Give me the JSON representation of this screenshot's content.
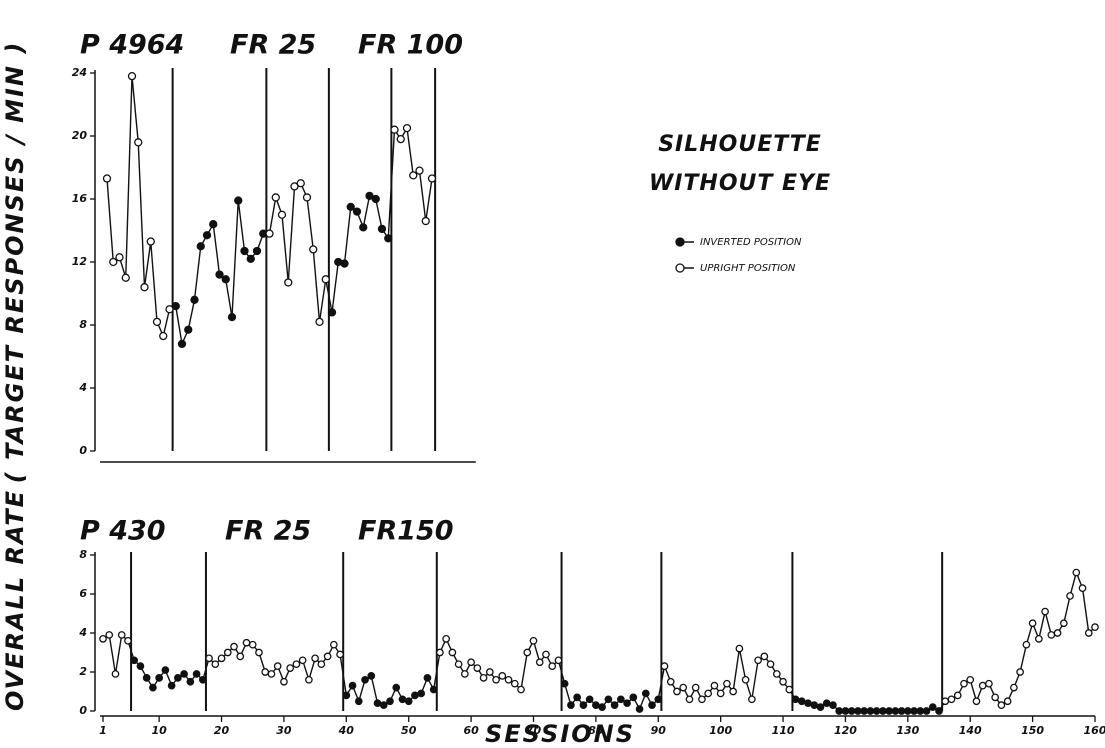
{
  "chart_data": [
    {
      "type": "line",
      "y_label": "( TARGET RESPONSES / MIN )",
      "annotation": [
        "SILHOUETTE",
        "WITHOUT EYE"
      ],
      "phase_labels": [
        "P 4964",
        "FR 25",
        "FR 100"
      ],
      "phase_lines": [
        11.5,
        26.5,
        36.5,
        46.5,
        53.5
      ],
      "x": [
        1,
        2,
        3,
        4,
        5,
        6,
        7,
        8,
        9,
        10,
        11,
        12,
        13,
        14,
        15,
        16,
        17,
        18,
        19,
        20,
        21,
        22,
        23,
        24,
        25,
        26,
        27,
        28,
        29,
        30,
        31,
        32,
        33,
        34,
        35,
        36,
        37,
        38,
        39,
        40,
        41,
        42,
        43,
        44,
        45,
        46,
        47,
        48,
        49,
        50,
        51,
        52,
        53
      ],
      "xlim": [
        0,
        60
      ],
      "ylim": [
        0,
        24
      ],
      "yticks": [
        0,
        4,
        8,
        12,
        16,
        20,
        24
      ],
      "legend": "right",
      "series": [
        {
          "name": "INVERTED POSITION",
          "marker": "filled",
          "color": "#111111",
          "values": [
            null,
            null,
            null,
            null,
            null,
            null,
            null,
            null,
            null,
            null,
            null,
            9.2,
            6.8,
            7.7,
            9.6,
            13,
            13.7,
            14.4,
            11.2,
            10.9,
            8.5,
            15.9,
            12.7,
            12.2,
            12.7,
            13.8,
            null,
            null,
            null,
            null,
            null,
            null,
            null,
            null,
            null,
            null,
            8.8,
            12,
            11.9,
            15.5,
            15.2,
            14.2,
            16.2,
            16,
            14.1,
            13.5,
            null,
            null,
            null,
            null,
            null,
            null,
            null
          ]
        },
        {
          "name": "UPRIGHT POSITION",
          "marker": "open",
          "color": "#111111",
          "values": [
            17.3,
            12,
            12.3,
            11,
            23.8,
            19.6,
            10.4,
            13.3,
            8.2,
            7.3,
            9,
            null,
            null,
            null,
            null,
            null,
            null,
            null,
            null,
            null,
            null,
            null,
            null,
            null,
            null,
            null,
            13.8,
            16.1,
            15,
            10.7,
            16.8,
            17,
            16.1,
            12.8,
            8.2,
            10.9,
            null,
            null,
            null,
            null,
            null,
            null,
            null,
            null,
            null,
            null,
            20.4,
            19.8,
            20.5,
            17.5,
            17.8,
            14.6,
            17.3
          ]
        }
      ]
    },
    {
      "type": "line",
      "y_label": "OVERALL RATE",
      "x_label": "SESSIONS",
      "phase_labels": [
        "P 430",
        "FR 25",
        "FR150"
      ],
      "phase_lines": [
        5.5,
        17.5,
        39.5,
        54.5,
        74.5,
        90.5,
        111.5,
        135.5
      ],
      "x": [
        1,
        2,
        3,
        4,
        5,
        6,
        7,
        8,
        9,
        10,
        11,
        12,
        13,
        14,
        15,
        16,
        17,
        18,
        19,
        20,
        21,
        22,
        23,
        24,
        25,
        26,
        27,
        28,
        29,
        30,
        31,
        32,
        33,
        34,
        35,
        36,
        37,
        38,
        39,
        40,
        41,
        42,
        43,
        44,
        45,
        46,
        47,
        48,
        49,
        50,
        51,
        52,
        53,
        54,
        55,
        56,
        57,
        58,
        59,
        60,
        61,
        62,
        63,
        64,
        65,
        66,
        67,
        68,
        69,
        70,
        71,
        72,
        73,
        74,
        75,
        76,
        77,
        78,
        79,
        80,
        81,
        82,
        83,
        84,
        85,
        86,
        87,
        88,
        89,
        90,
        91,
        92,
        93,
        94,
        95,
        96,
        97,
        98,
        99,
        100,
        101,
        102,
        103,
        104,
        105,
        106,
        107,
        108,
        109,
        110,
        111,
        112,
        113,
        114,
        115,
        116,
        117,
        118,
        119,
        120,
        121,
        122,
        123,
        124,
        125,
        126,
        127,
        128,
        129,
        130,
        131,
        132,
        133,
        134,
        135,
        136,
        137,
        138,
        139,
        140,
        141,
        142,
        143,
        144,
        145,
        146,
        147,
        148,
        149,
        150,
        151,
        152,
        153,
        154,
        155,
        156,
        157,
        158,
        159,
        160
      ],
      "xlim": [
        0,
        160
      ],
      "ylim": [
        0,
        8
      ],
      "xticks": [
        1,
        10,
        20,
        30,
        40,
        50,
        60,
        70,
        80,
        90,
        100,
        110,
        120,
        130,
        140,
        150,
        160
      ],
      "yticks": [
        0,
        2,
        4,
        6,
        8
      ],
      "series": [
        {
          "marker": "filled",
          "color": "#111111",
          "values": [
            null,
            null,
            null,
            null,
            null,
            2.6,
            2.3,
            1.7,
            1.2,
            1.7,
            2.1,
            1.3,
            1.7,
            1.9,
            1.5,
            1.9,
            1.6,
            null,
            null,
            null,
            null,
            null,
            null,
            null,
            null,
            null,
            null,
            null,
            null,
            null,
            null,
            null,
            null,
            null,
            null,
            null,
            null,
            null,
            null,
            0.8,
            1.3,
            0.5,
            1.6,
            1.8,
            0.4,
            0.3,
            0.5,
            1.2,
            0.6,
            0.5,
            0.8,
            0.9,
            1.7,
            1.1,
            null,
            null,
            null,
            null,
            null,
            null,
            null,
            null,
            null,
            null,
            null,
            null,
            null,
            null,
            null,
            null,
            null,
            null,
            null,
            null,
            1.4,
            0.3,
            0.7,
            0.3,
            0.6,
            0.3,
            0.2,
            0.6,
            0.3,
            0.6,
            0.4,
            0.7,
            0.1,
            0.9,
            0.3,
            0.6,
            null,
            null,
            null,
            null,
            null,
            null,
            null,
            null,
            null,
            null,
            null,
            null,
            null,
            null,
            null,
            null,
            null,
            null,
            null,
            null,
            null,
            0.6,
            0.5,
            0.4,
            0.3,
            0.2,
            0.4,
            0.3,
            0,
            0,
            0,
            0,
            0,
            0,
            0,
            0,
            0,
            0,
            0,
            0,
            0,
            0,
            0,
            0.2,
            0,
            null,
            null,
            null,
            null,
            null,
            null,
            null,
            null,
            null,
            null,
            null,
            null,
            null,
            null,
            null,
            null,
            null,
            null,
            null,
            null,
            null,
            null,
            null,
            null,
            null
          ]
        },
        {
          "marker": "open",
          "color": "#111111",
          "values": [
            3.7,
            3.9,
            1.9,
            3.9,
            3.6,
            null,
            null,
            null,
            null,
            null,
            null,
            null,
            null,
            null,
            null,
            null,
            null,
            2.7,
            2.4,
            2.7,
            3,
            3.3,
            2.8,
            3.5,
            3.4,
            3,
            2,
            1.9,
            2.3,
            1.5,
            2.2,
            2.4,
            2.6,
            1.6,
            2.7,
            2.4,
            2.8,
            3.4,
            2.9,
            null,
            null,
            null,
            null,
            null,
            null,
            null,
            null,
            null,
            null,
            null,
            null,
            null,
            null,
            null,
            3,
            3.7,
            3,
            2.4,
            1.9,
            2.5,
            2.2,
            1.7,
            2,
            1.6,
            1.8,
            1.6,
            1.4,
            1.1,
            3,
            3.6,
            2.5,
            2.9,
            2.3,
            2.6,
            null,
            null,
            null,
            null,
            null,
            null,
            null,
            null,
            null,
            null,
            null,
            null,
            null,
            null,
            null,
            null,
            2.3,
            1.5,
            1,
            1.2,
            0.6,
            1.2,
            0.6,
            0.9,
            1.3,
            0.9,
            1.4,
            1,
            3.2,
            1.6,
            0.6,
            2.6,
            2.8,
            2.4,
            1.9,
            1.5,
            1.1,
            null,
            null,
            null,
            null,
            null,
            null,
            null,
            null,
            null,
            null,
            null,
            null,
            null,
            null,
            null,
            null,
            null,
            null,
            null,
            null,
            null,
            null,
            null,
            null,
            0.5,
            0.6,
            0.8,
            1.4,
            1.6,
            0.5,
            1.3,
            1.4,
            0.7,
            0.3,
            0.5,
            1.2,
            2,
            3.4,
            4.5,
            3.7,
            5.1,
            3.9,
            4,
            4.5,
            5.9,
            7.1,
            6.3,
            4,
            4.3
          ]
        }
      ]
    }
  ]
}
